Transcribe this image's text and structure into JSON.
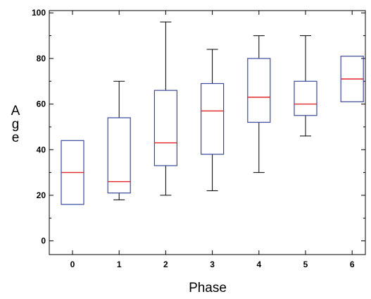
{
  "chart_data": {
    "type": "box",
    "title": "",
    "xlabel": "Phase",
    "ylabel": "Age",
    "categories": [
      "0",
      "1",
      "2",
      "3",
      "4",
      "5",
      "6"
    ],
    "ylim": [
      -6,
      101
    ],
    "yticks": [
      0,
      20,
      40,
      60,
      80,
      100
    ],
    "grid": false,
    "boxes": [
      {
        "category": "0",
        "whisker_low": 16,
        "q1": 16,
        "median": 30,
        "q3": 44,
        "whisker_high": 44
      },
      {
        "category": "1",
        "whisker_low": 18,
        "q1": 21,
        "median": 26,
        "q3": 54,
        "whisker_high": 70
      },
      {
        "category": "2",
        "whisker_low": 20,
        "q1": 33,
        "median": 43,
        "q3": 66,
        "whisker_high": 96
      },
      {
        "category": "3",
        "whisker_low": 22,
        "q1": 38,
        "median": 57,
        "q3": 69,
        "whisker_high": 84
      },
      {
        "category": "4",
        "whisker_low": 30,
        "q1": 52,
        "median": 63,
        "q3": 80,
        "whisker_high": 90
      },
      {
        "category": "5",
        "whisker_low": 46,
        "q1": 55,
        "median": 60,
        "q3": 70,
        "whisker_high": 90
      },
      {
        "category": "6",
        "whisker_low": 61,
        "q1": 61,
        "median": 71,
        "q3": 81,
        "whisker_high": 81
      }
    ],
    "colors": {
      "box": "#3a4a9c",
      "median": "#e0242a",
      "whisker": "#000000",
      "axis": "#000000"
    }
  }
}
